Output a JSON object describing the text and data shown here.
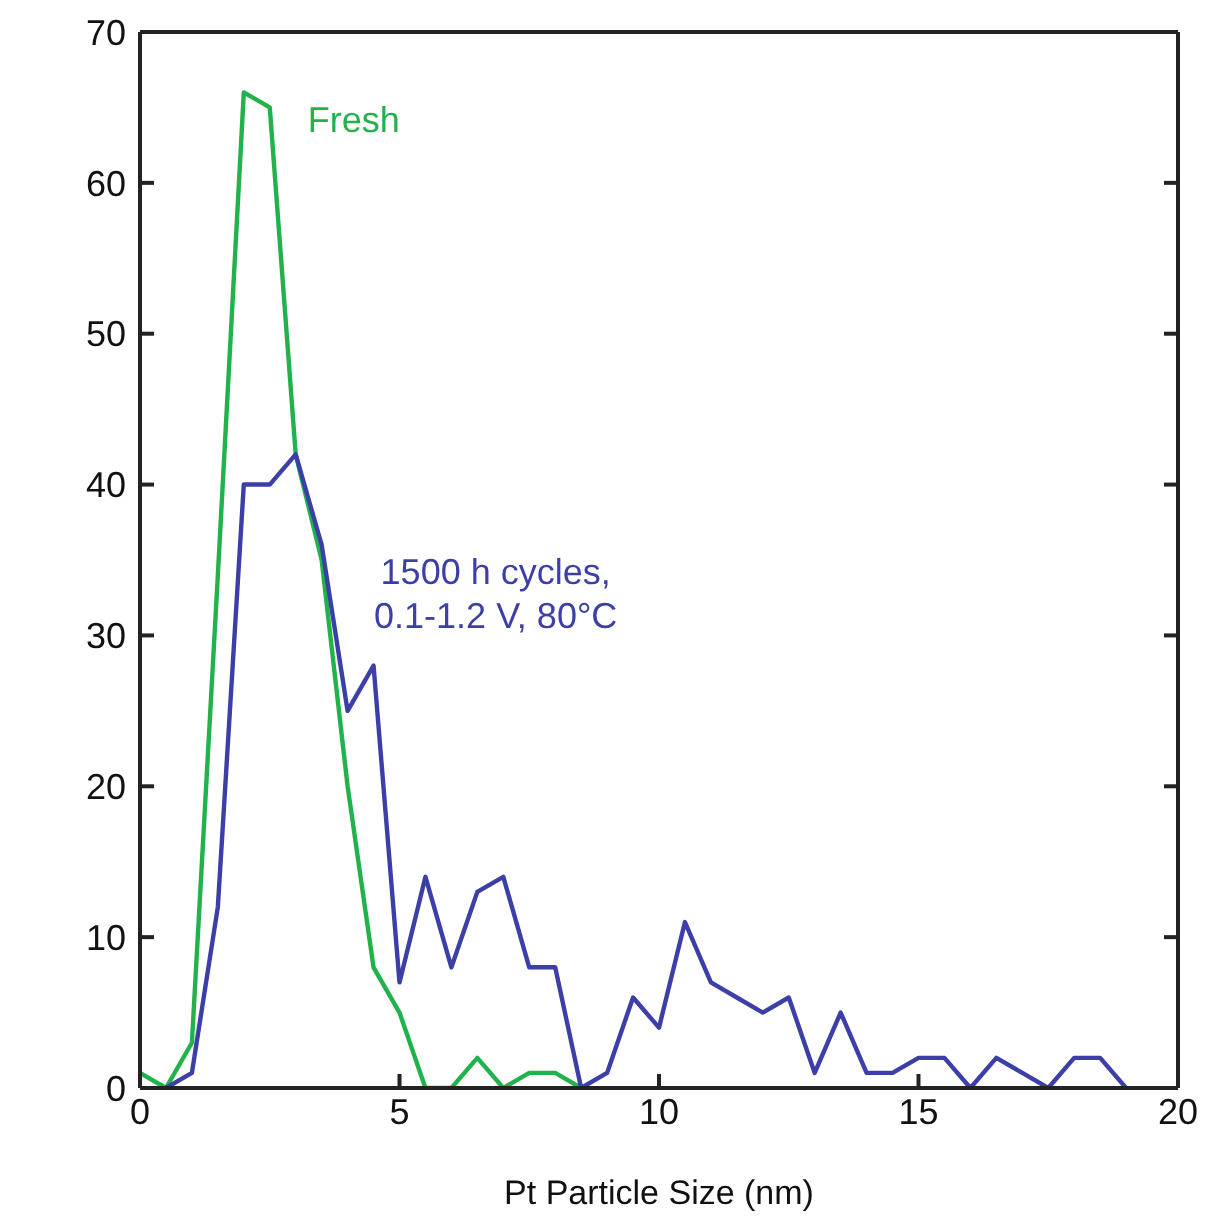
{
  "chart_data": {
    "type": "line",
    "xlabel": "Pt Particle Size (nm)",
    "xlim": [
      0,
      20
    ],
    "xticks": [
      0,
      5,
      10,
      15,
      20
    ],
    "ylim": [
      0,
      70
    ],
    "yticks": [
      0,
      10,
      20,
      30,
      40,
      50,
      60,
      70
    ],
    "marker": "none",
    "line_style": "solid",
    "series": [
      {
        "name": "Fresh",
        "color": "#22b24c",
        "x": [
          0,
          0.5,
          1,
          1.5,
          2,
          2.5,
          3,
          3.5,
          4,
          4.5,
          5,
          5.5,
          6,
          6.5,
          7,
          7.5,
          8,
          8.5
        ],
        "values": [
          1,
          0,
          3,
          34,
          66,
          65,
          42,
          35,
          20,
          8,
          5,
          0,
          0,
          2,
          0,
          1,
          1,
          0
        ]
      },
      {
        "name": "1500 h cycles,\n0.1-1.2 V, 80°C",
        "color": "#3d3fa8",
        "x": [
          0.5,
          1,
          1.5,
          2,
          2.5,
          3,
          3.5,
          4,
          4.5,
          5,
          5.5,
          6,
          6.5,
          7,
          7.5,
          8,
          8.5,
          9,
          9.5,
          10,
          10.5,
          11,
          11.5,
          12,
          12.5,
          13,
          13.5,
          14,
          14.5,
          15,
          15.5,
          16,
          16.5,
          17,
          17.5,
          18,
          18.5,
          19
        ],
        "values": [
          0,
          1,
          12,
          40,
          40,
          42,
          36,
          25,
          28,
          7,
          14,
          8,
          13,
          14,
          8,
          8,
          0,
          1,
          6,
          4,
          11,
          7,
          6,
          5,
          6,
          1,
          5,
          1,
          1,
          2,
          2,
          0,
          2,
          1,
          0,
          2,
          2,
          0
        ]
      }
    ]
  }
}
